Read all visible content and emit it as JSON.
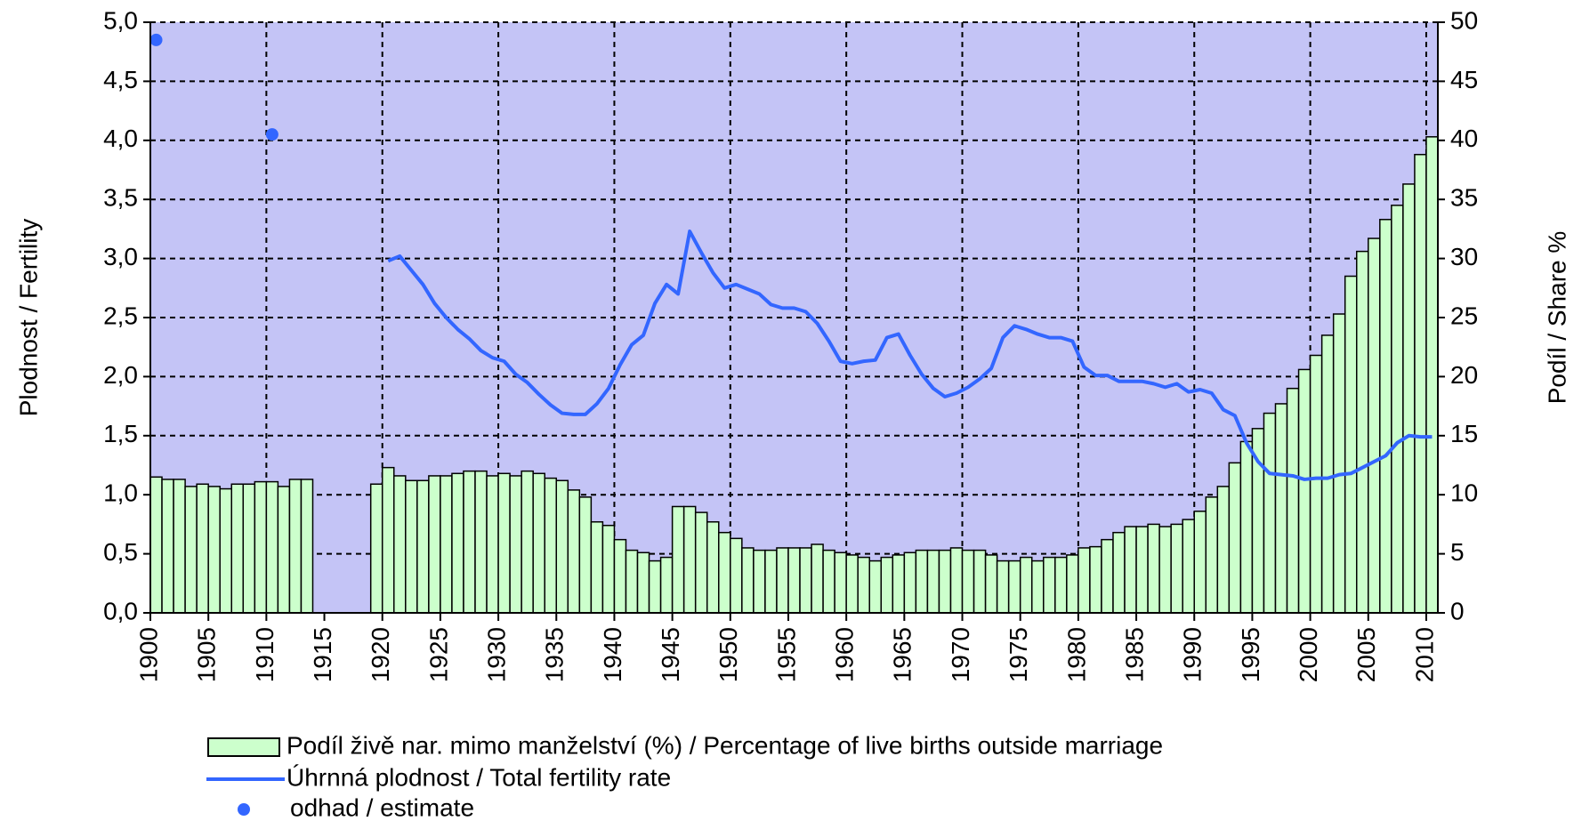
{
  "chart_data": {
    "type": "combo",
    "ylabel": "Plodnost / Fertility",
    "y2label": "Podíl / Share %",
    "x": [
      1900,
      1901,
      1902,
      1903,
      1904,
      1905,
      1906,
      1907,
      1908,
      1909,
      1910,
      1911,
      1912,
      1913,
      1914,
      1915,
      1916,
      1917,
      1918,
      1919,
      1920,
      1921,
      1922,
      1923,
      1924,
      1925,
      1926,
      1927,
      1928,
      1929,
      1930,
      1931,
      1932,
      1933,
      1934,
      1935,
      1936,
      1937,
      1938,
      1939,
      1940,
      1941,
      1942,
      1943,
      1944,
      1945,
      1946,
      1947,
      1948,
      1949,
      1950,
      1951,
      1952,
      1953,
      1954,
      1955,
      1956,
      1957,
      1958,
      1959,
      1960,
      1961,
      1962,
      1963,
      1964,
      1965,
      1966,
      1967,
      1968,
      1969,
      1970,
      1971,
      1972,
      1973,
      1974,
      1975,
      1976,
      1977,
      1978,
      1979,
      1980,
      1981,
      1982,
      1983,
      1984,
      1985,
      1986,
      1987,
      1988,
      1989,
      1990,
      1991,
      1992,
      1993,
      1994,
      1995,
      1996,
      1997,
      1998,
      1999,
      2000,
      2001,
      2002,
      2003,
      2004,
      2005,
      2006,
      2007,
      2008,
      2009,
      2010
    ],
    "xlim": [
      1900,
      2011
    ],
    "xticks": [
      1900,
      1905,
      1910,
      1915,
      1920,
      1925,
      1930,
      1935,
      1940,
      1945,
      1950,
      1955,
      1960,
      1965,
      1970,
      1975,
      1980,
      1985,
      1990,
      1995,
      2000,
      2005,
      2010
    ],
    "ylim": [
      0,
      5
    ],
    "yticks": [
      {
        "value": 0,
        "label": "0,0"
      },
      {
        "value": 0.5,
        "label": "0,5"
      },
      {
        "value": 1,
        "label": "1,0"
      },
      {
        "value": 1.5,
        "label": "1,5"
      },
      {
        "value": 2,
        "label": "2,0"
      },
      {
        "value": 2.5,
        "label": "2,5"
      },
      {
        "value": 3,
        "label": "3,0"
      },
      {
        "value": 3.5,
        "label": "3,5"
      },
      {
        "value": 4,
        "label": "4,0"
      },
      {
        "value": 4.5,
        "label": "4,5"
      },
      {
        "value": 5,
        "label": "5,0"
      }
    ],
    "y2lim": [
      0,
      50
    ],
    "y2ticks": [
      0,
      5,
      10,
      15,
      20,
      25,
      30,
      35,
      40,
      45,
      50
    ],
    "grid": true,
    "background": "#c4c4f6",
    "legend": "bottom",
    "series": [
      {
        "name": "Podíl živě nar. mimo manželství (%) / Percentage of live births outside marriage",
        "type": "bar",
        "axis": "y2",
        "color": "#ccffcc",
        "values": [
          11.5,
          11.3,
          11.3,
          10.7,
          10.9,
          10.7,
          10.5,
          10.9,
          10.9,
          11.1,
          11.1,
          10.7,
          11.3,
          11.3,
          null,
          null,
          null,
          null,
          null,
          10.9,
          12.3,
          11.6,
          11.2,
          11.2,
          11.6,
          11.6,
          11.8,
          12.0,
          12.0,
          11.6,
          11.8,
          11.6,
          12.0,
          11.8,
          11.4,
          11.2,
          10.4,
          9.8,
          7.7,
          7.4,
          6.2,
          5.3,
          5.1,
          4.4,
          4.7,
          9.0,
          9.0,
          8.5,
          7.7,
          6.8,
          6.3,
          5.5,
          5.3,
          5.3,
          5.5,
          5.5,
          5.5,
          5.8,
          5.3,
          5.1,
          4.9,
          4.7,
          4.4,
          4.7,
          4.9,
          5.1,
          5.3,
          5.3,
          5.3,
          5.5,
          5.3,
          5.3,
          4.9,
          4.4,
          4.4,
          4.7,
          4.4,
          4.7,
          4.7,
          4.9,
          5.5,
          5.6,
          6.2,
          6.8,
          7.3,
          7.3,
          7.5,
          7.3,
          7.5,
          7.9,
          8.6,
          9.8,
          10.7,
          12.7,
          14.5,
          15.6,
          16.9,
          17.7,
          19.0,
          20.6,
          21.8,
          23.5,
          25.3,
          28.5,
          30.6,
          31.7,
          33.3,
          34.5,
          36.3,
          38.8,
          40.3
        ]
      },
      {
        "name": "Úhrnná plodnost / Total fertility rate",
        "type": "line",
        "color": "#3366ff",
        "values": [
          null,
          null,
          null,
          null,
          null,
          null,
          null,
          null,
          null,
          null,
          null,
          null,
          null,
          null,
          null,
          null,
          null,
          null,
          null,
          null,
          2.98,
          3.02,
          2.9,
          2.78,
          2.62,
          2.5,
          2.4,
          2.32,
          2.22,
          2.16,
          2.13,
          2.02,
          1.95,
          1.85,
          1.76,
          1.69,
          1.68,
          1.68,
          1.77,
          1.9,
          2.1,
          2.27,
          2.35,
          2.62,
          2.78,
          2.7,
          3.23,
          3.05,
          2.88,
          2.75,
          2.78,
          2.74,
          2.7,
          2.61,
          2.58,
          2.58,
          2.55,
          2.45,
          2.3,
          2.13,
          2.11,
          2.13,
          2.14,
          2.33,
          2.36,
          2.18,
          2.02,
          1.9,
          1.83,
          1.86,
          1.91,
          1.98,
          2.07,
          2.33,
          2.43,
          2.4,
          2.36,
          2.33,
          2.33,
          2.3,
          2.08,
          2.01,
          2.01,
          1.96,
          1.96,
          1.96,
          1.94,
          1.91,
          1.94,
          1.87,
          1.89,
          1.86,
          1.72,
          1.67,
          1.44,
          1.28,
          1.18,
          1.17,
          1.16,
          1.13,
          1.14,
          1.14,
          1.17,
          1.18,
          1.23,
          1.28,
          1.33,
          1.44,
          1.5,
          1.49,
          1.49
        ]
      },
      {
        "name": "odhad / estimate",
        "type": "scatter",
        "color": "#3366ff",
        "x": [
          1900,
          1910
        ],
        "values": [
          4.85,
          4.05
        ]
      }
    ]
  }
}
